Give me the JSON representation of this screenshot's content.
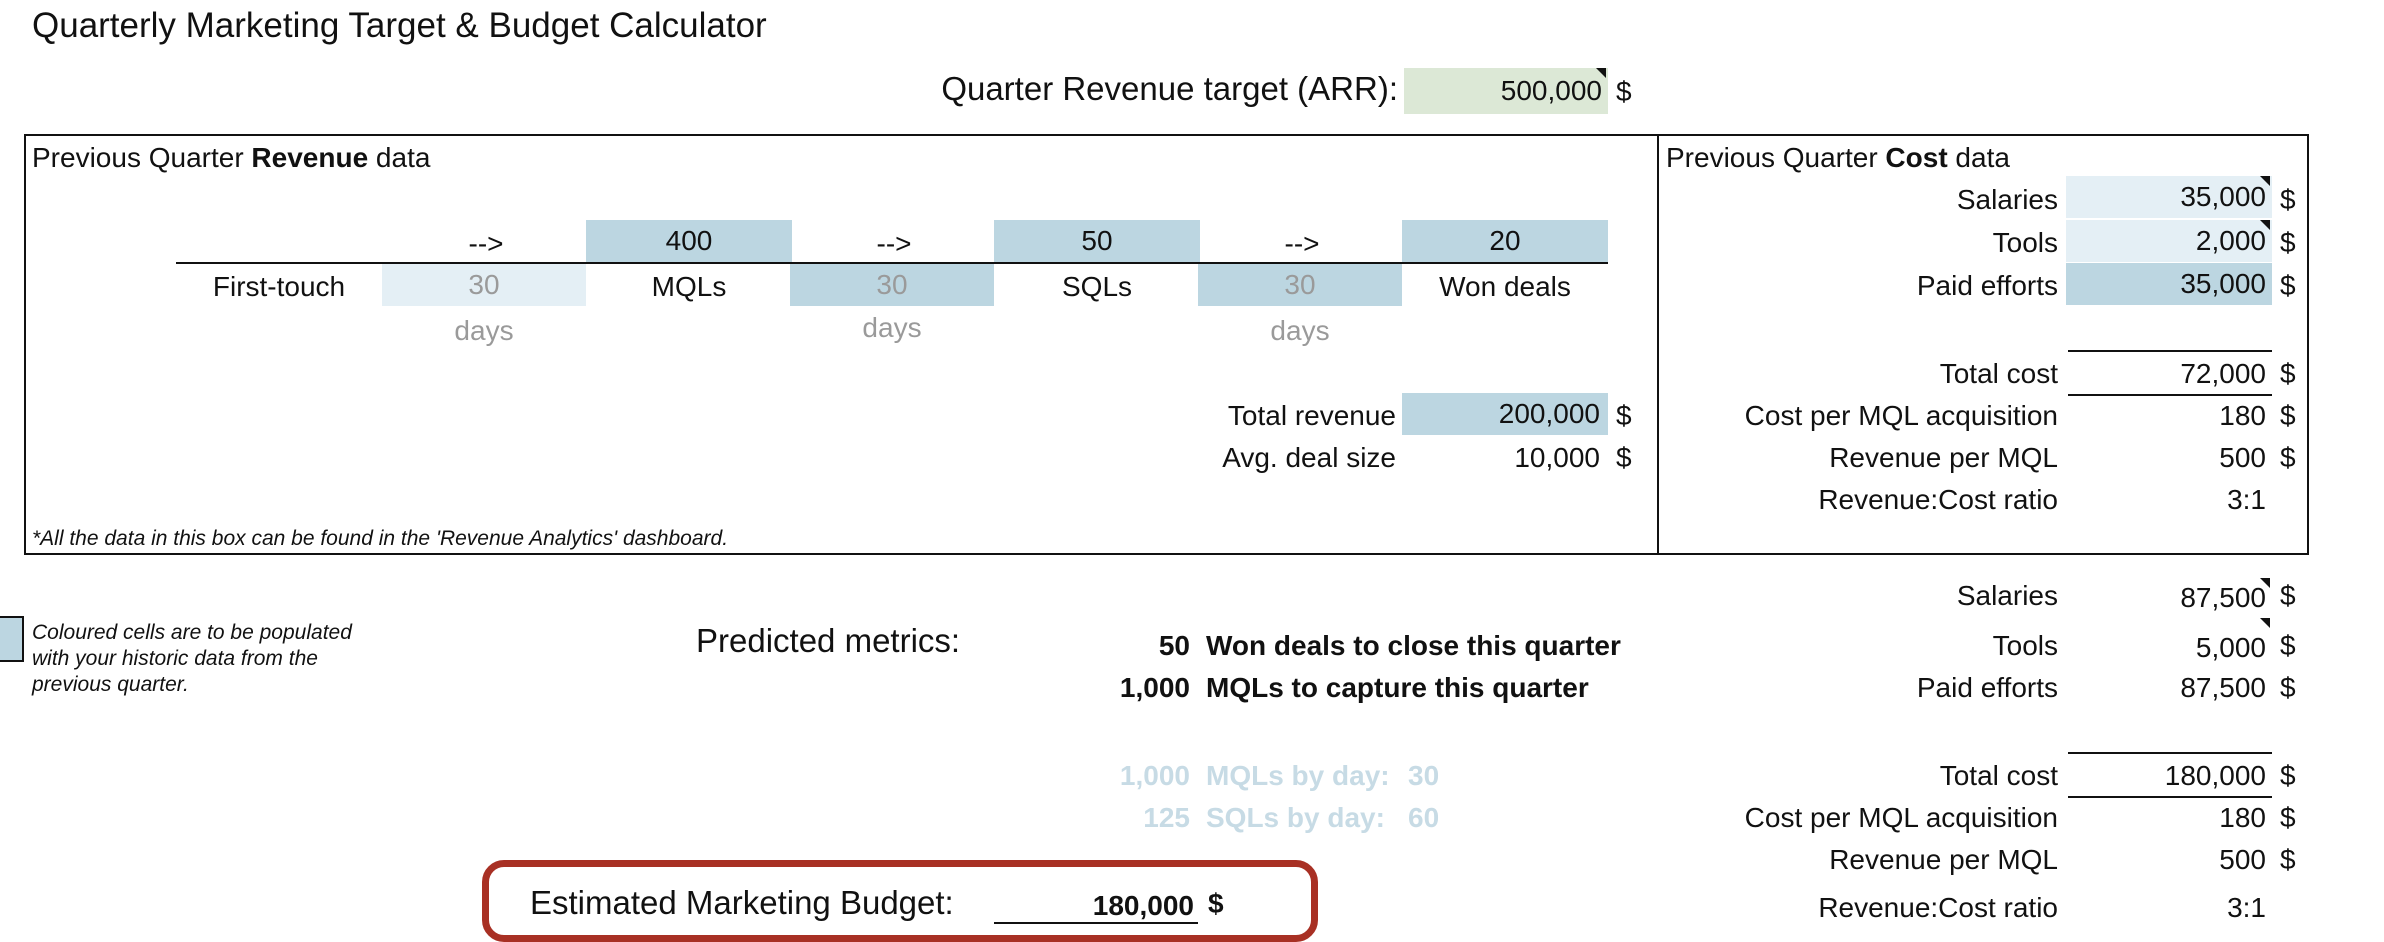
{
  "title": "Quarterly Marketing Target & Budget Calculator",
  "target": {
    "label": "Quarter Revenue target (ARR):",
    "value": "500,000",
    "unit": "$"
  },
  "revenue_box": {
    "heading_pre": "Previous Quarter ",
    "heading_bold": "Revenue",
    "heading_post": " data",
    "arrows": [
      "-->",
      "-->",
      "-->"
    ],
    "counts": [
      "400",
      "50",
      "20"
    ],
    "stages": [
      "First-touch",
      "MQLs",
      "SQLs",
      "Won deals"
    ],
    "day_values": [
      "30",
      "30",
      "30"
    ],
    "days_label": "days",
    "total_revenue_label": "Total revenue",
    "total_revenue_value": "200,000",
    "avg_deal_label": "Avg. deal size",
    "avg_deal_value": "10,000",
    "unit": "$",
    "footnote": "*All the data in this box can be found in the 'Revenue Analytics' dashboard."
  },
  "cost_box": {
    "heading_pre": "Previous Quarter ",
    "heading_bold": "Cost",
    "heading_post": " data",
    "salaries_label": "Salaries",
    "salaries_value": "35,000",
    "tools_label": "Tools",
    "tools_value": "2,000",
    "paid_label": "Paid efforts",
    "paid_value": "35,000",
    "total_label": "Total cost",
    "total_value": "72,000",
    "cpm_label": "Cost per MQL acquisition",
    "cpm_value": "180",
    "rpm_label": "Revenue per MQL",
    "rpm_value": "500",
    "ratio_label": "Revenue:Cost ratio",
    "ratio_value": "3:1",
    "unit": "$"
  },
  "legend": {
    "text": "Coloured cells are to be populated with your historic data from the previous quarter."
  },
  "predicted": {
    "label": "Predicted metrics:",
    "won_value": "50",
    "won_label": "Won deals to close this quarter",
    "mql_value": "1,000",
    "mql_label": "MQLs to capture this quarter",
    "mql_by_day_value": "1,000",
    "mql_by_day_label": "MQLs by day:",
    "mql_by_day_days": "30",
    "sql_by_day_value": "125",
    "sql_by_day_label": "SQLs by day:",
    "sql_by_day_days": "60"
  },
  "projected_cost": {
    "salaries_label": "Salaries",
    "salaries_value": "87,500",
    "tools_label": "Tools",
    "tools_value": "5,000",
    "paid_label": "Paid efforts",
    "paid_value": "87,500",
    "total_label": "Total cost",
    "total_value": "180,000",
    "cpm_label": "Cost per MQL acquisition",
    "cpm_value": "180",
    "rpm_label": "Revenue per MQL",
    "rpm_value": "500",
    "ratio_label": "Revenue:Cost ratio",
    "ratio_value": "3:1",
    "unit": "$"
  },
  "budget": {
    "label": "Estimated Marketing Budget:",
    "value": "180,000",
    "unit": "$"
  },
  "colors": {
    "light_blue": "#bcd6e1",
    "extra_light_blue": "#e4eff5",
    "light_green": "#dce8d6",
    "budget_border": "#a83024",
    "faint_text": "#c7dbe5"
  }
}
